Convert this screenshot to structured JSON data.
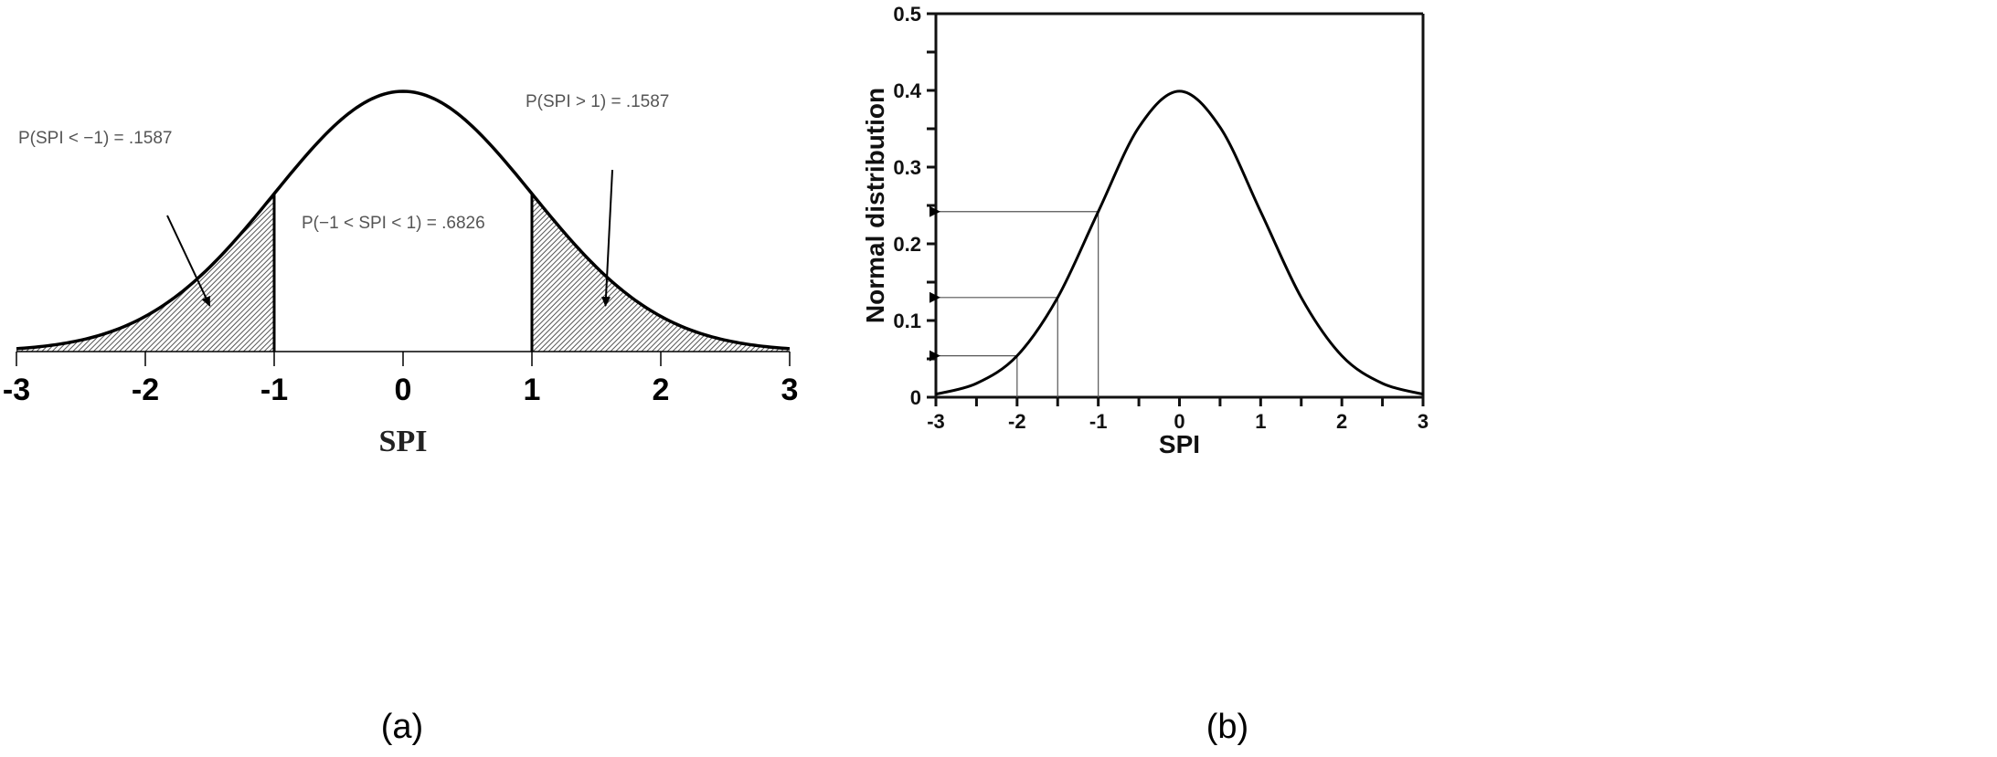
{
  "chart_data": [
    {
      "type": "area",
      "panel_label": "(a)",
      "title": "",
      "xlabel": "SPI",
      "ylabel": "",
      "xlim": [
        -3,
        3
      ],
      "xticks": [
        "-3",
        "-2",
        "-1",
        "0",
        "1",
        "2",
        "3"
      ],
      "curve": "standard normal pdf",
      "shaded_regions": [
        [
          -3,
          -1
        ],
        [
          1,
          3
        ]
      ],
      "annotations": [
        {
          "text": "P(SPI < −1) = .1587",
          "points_to_x": -1.5
        },
        {
          "text": "P(SPI > 1) = .1587",
          "points_to_x": 1.5
        },
        {
          "text": "P(−1 < SPI < 1) = .6826"
        }
      ]
    },
    {
      "type": "line",
      "panel_label": "(b)",
      "title": "",
      "xlabel": "SPI",
      "ylabel": "Normal distribution",
      "xlim": [
        -3,
        3
      ],
      "ylim": [
        0,
        0.5
      ],
      "xticks": [
        "-3",
        "-2",
        "-1",
        "0",
        "1",
        "2",
        "3"
      ],
      "yticks": [
        "0",
        "0.1",
        "0.2",
        "0.3",
        "0.4",
        "0.5"
      ],
      "x": [
        -3,
        -2.5,
        -2,
        -1.5,
        -1,
        -0.5,
        0,
        0.5,
        1,
        1.5,
        2,
        2.5,
        3
      ],
      "y": [
        0.004,
        0.018,
        0.054,
        0.13,
        0.242,
        0.352,
        0.399,
        0.352,
        0.242,
        0.13,
        0.054,
        0.018,
        0.004
      ],
      "reference_arrows": [
        {
          "x": -1,
          "y": 0.242
        },
        {
          "x": -1.5,
          "y": 0.13
        },
        {
          "x": -2,
          "y": 0.054
        }
      ]
    }
  ]
}
